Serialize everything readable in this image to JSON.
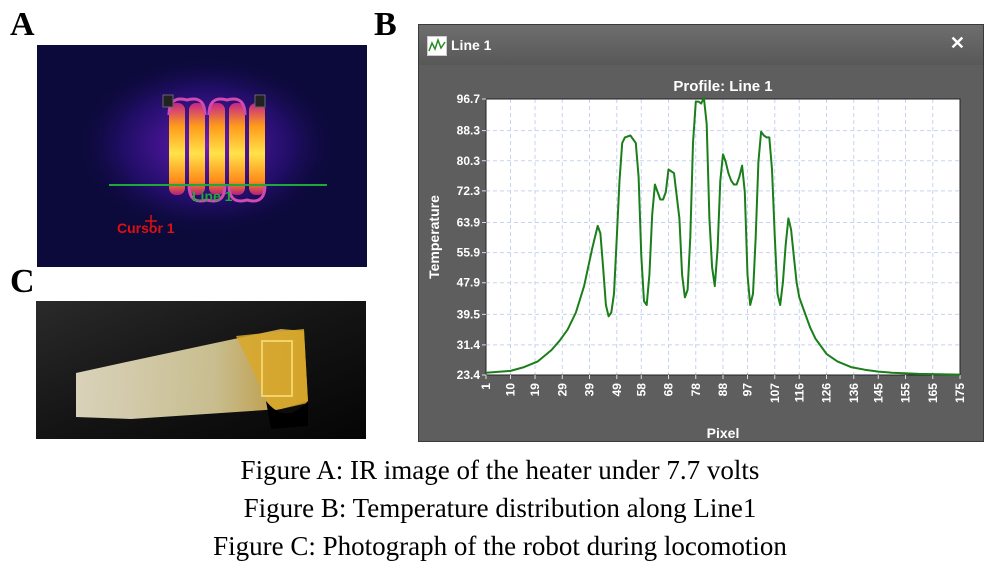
{
  "panels": {
    "a": "A",
    "b": "B",
    "c": "C"
  },
  "ir_image": {
    "line_label": "Line 1",
    "cursor_label": "Cursor 1"
  },
  "window": {
    "title": "Line 1",
    "close_icon": "close-icon"
  },
  "chart_data": {
    "type": "line",
    "title": "Profile: Line 1",
    "xlabel": "Pixel",
    "ylabel": "Temperature",
    "xlim": [
      1,
      175
    ],
    "ylim": [
      23.4,
      96.7
    ],
    "grid": true,
    "x_ticks": [
      "1",
      "10",
      "19",
      "29",
      "39",
      "49",
      "58",
      "68",
      "78",
      "88",
      "97",
      "107",
      "116",
      "126",
      "136",
      "145",
      "155",
      "165",
      "175"
    ],
    "y_ticks": [
      "23.4",
      "31.4",
      "39.5",
      "47.9",
      "55.9",
      "63.9",
      "72.3",
      "80.3",
      "88.3",
      "96.7"
    ],
    "line_color": "#1a7f1a",
    "series": [
      {
        "x": [
          1,
          10,
          15,
          20,
          25,
          28,
          31,
          34,
          37,
          40,
          42,
          43,
          44,
          45,
          46,
          47,
          48,
          49,
          50,
          51,
          52,
          54,
          56,
          57,
          58,
          59,
          60,
          61,
          62,
          63,
          64,
          65,
          66,
          67,
          68,
          70,
          72,
          73,
          74,
          75,
          76,
          77,
          78,
          79,
          80,
          81,
          82,
          83,
          84,
          85,
          86,
          87,
          88,
          89,
          90,
          91,
          92,
          93,
          94,
          95,
          96,
          97,
          98,
          99,
          100,
          101,
          102,
          103,
          104,
          105,
          106,
          107,
          108,
          109,
          110,
          111,
          112,
          113,
          114,
          115,
          116,
          117,
          118,
          120,
          122,
          124,
          126,
          130,
          135,
          140,
          145,
          150,
          160,
          175
        ],
        "y": [
          24,
          24.5,
          25.5,
          27,
          30,
          32.5,
          35.5,
          40,
          47,
          57,
          63,
          61,
          52,
          42,
          39,
          40,
          45,
          60,
          75,
          85,
          86.5,
          87,
          85,
          76,
          55,
          43,
          42,
          50,
          66,
          74,
          72,
          70,
          70,
          72,
          78,
          77,
          65,
          50,
          44,
          46,
          60,
          85,
          96,
          96,
          95.5,
          97,
          90,
          65,
          52,
          47,
          57,
          75,
          82,
          80,
          77,
          75,
          74,
          74,
          76,
          79,
          72,
          50,
          42,
          45,
          60,
          80,
          88,
          87,
          86.5,
          86.5,
          78,
          60,
          45,
          42,
          48,
          58,
          65,
          62,
          55,
          48,
          44,
          42,
          40,
          36,
          33,
          31,
          29,
          27,
          25.5,
          24.8,
          24.3,
          24,
          23.7,
          23.5
        ]
      }
    ]
  },
  "captions": [
    "Figure A: IR image of the heater under 7.7 volts",
    "Figure B: Temperature distribution along Line1",
    "Figure C: Photograph of the robot during locomotion"
  ]
}
